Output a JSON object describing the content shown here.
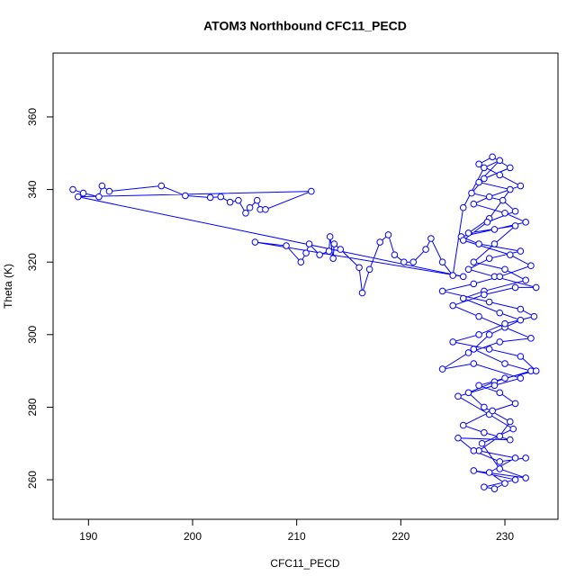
{
  "chart_data": {
    "type": "line",
    "marker": "open-circle",
    "color": "#0000ff",
    "title": "ATOM3 Northbound CFC11_PECD",
    "x_label": "CFC11_PECD",
    "y_label": "Theta (K)",
    "xlim": [
      186.6,
      235.1
    ],
    "ylim": [
      249.1,
      377.6
    ],
    "xticks": [
      190,
      200,
      210,
      220,
      230
    ],
    "yticks": [
      260,
      280,
      300,
      320,
      340,
      360
    ],
    "x": [
      188.5,
      189.5,
      191,
      191.3,
      192,
      197,
      199.3,
      201.7,
      202.7,
      203.6,
      204.4,
      205.1,
      205.5,
      206.2,
      206.5,
      207,
      211.4,
      189,
      226,
      206,
      209,
      210.4,
      210.9,
      211.2,
      212.2,
      213.1,
      213.2,
      213.5,
      213.6,
      214.2,
      216,
      216.3,
      217,
      218,
      218.8,
      219.4,
      220.3,
      221.2,
      222.4,
      222.9,
      224,
      225,
      226,
      228,
      229.5,
      227.5,
      230.5,
      228.5,
      226.5,
      231,
      229,
      227,
      230,
      232,
      228,
      226,
      229.5,
      231.5,
      228.5,
      227,
      230,
      232.5,
      229,
      226.5,
      228,
      230.5,
      229.5,
      227.5,
      231,
      228.5,
      230,
      229,
      228,
      231,
      227,
      232,
      229.5,
      227.8,
      230.8,
      228.5,
      225.5,
      229,
      231.5,
      227,
      224,
      226.5,
      229.5,
      232.5,
      230,
      227.5,
      225,
      228,
      231,
      233,
      229,
      226.5,
      228.5,
      231.5,
      227.5,
      225.8,
      229,
      232,
      230,
      227,
      228.5,
      231.5,
      229.5,
      227.5,
      228.8,
      230.5,
      228,
      226.8,
      229.8,
      231,
      228.3,
      226,
      230.5,
      232.5,
      229.5,
      227,
      224,
      228.5,
      231.5,
      232.8,
      230,
      227.5,
      225,
      228.5,
      231.5,
      233,
      230,
      227.5,
      229.5,
      231,
      228.8,
      226,
      228,
      230.5,
      225.5,
      227,
      229.5,
      232
    ],
    "values": [
      340,
      339,
      338,
      341,
      339.5,
      341,
      338.3,
      337.8,
      338,
      336.5,
      337,
      333.5,
      335,
      337,
      334.5,
      334.5,
      339.5,
      338,
      316,
      325.5,
      324.5,
      320,
      322.5,
      325,
      322,
      323,
      327,
      321,
      325,
      323.5,
      318.5,
      311.5,
      318,
      325.5,
      327.5,
      322,
      320,
      320,
      323.5,
      326.5,
      320,
      316.3,
      335,
      346,
      348,
      342,
      340,
      332,
      328,
      330,
      325,
      320,
      318,
      315,
      312,
      310,
      306,
      304,
      300,
      296,
      292,
      290,
      287,
      284,
      280,
      276,
      272,
      268,
      266,
      262,
      259,
      257.5,
      258,
      260,
      262.5,
      260.5,
      263,
      270,
      274,
      278,
      283,
      286,
      288,
      292,
      290.5,
      295,
      298,
      299,
      302,
      305,
      308,
      311,
      313,
      313,
      316,
      318,
      321,
      323,
      325,
      327,
      329,
      331,
      333.5,
      336,
      338,
      341,
      344,
      347,
      349,
      346,
      343,
      339,
      337,
      334,
      331,
      326,
      322,
      319,
      316,
      314,
      312,
      309,
      307,
      305,
      303,
      300,
      298,
      296,
      294,
      290,
      288,
      286,
      284,
      281,
      279,
      275,
      273,
      271,
      271.5,
      268,
      265,
      266
    ]
  }
}
